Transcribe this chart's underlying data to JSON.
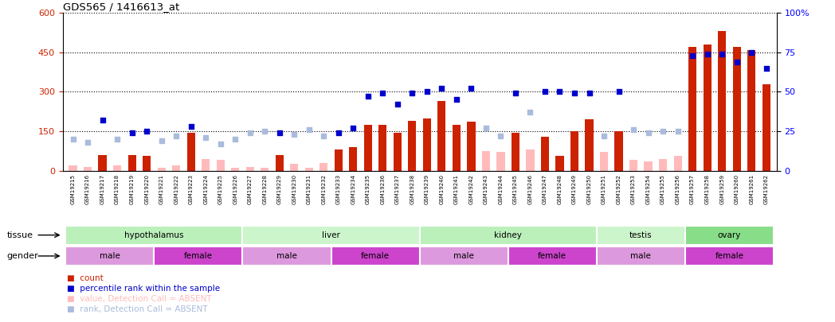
{
  "title": "GDS565 / 1416613_at",
  "samples": [
    "GSM19215",
    "GSM19216",
    "GSM19217",
    "GSM19218",
    "GSM19219",
    "GSM19220",
    "GSM19221",
    "GSM19222",
    "GSM19223",
    "GSM19224",
    "GSM19225",
    "GSM19226",
    "GSM19227",
    "GSM19228",
    "GSM19229",
    "GSM19230",
    "GSM19231",
    "GSM19232",
    "GSM19233",
    "GSM19234",
    "GSM19235",
    "GSM19236",
    "GSM19237",
    "GSM19238",
    "GSM19239",
    "GSM19240",
    "GSM19241",
    "GSM19242",
    "GSM19243",
    "GSM19244",
    "GSM19245",
    "GSM19246",
    "GSM19247",
    "GSM19248",
    "GSM19249",
    "GSM19250",
    "GSM19251",
    "GSM19252",
    "GSM19253",
    "GSM19254",
    "GSM19255",
    "GSM19256",
    "GSM19257",
    "GSM19258",
    "GSM19259",
    "GSM19260",
    "GSM19261",
    "GSM19262"
  ],
  "count_values": [
    20,
    15,
    60,
    20,
    60,
    55,
    10,
    20,
    145,
    45,
    40,
    10,
    15,
    10,
    60,
    25,
    10,
    30,
    80,
    90,
    175,
    175,
    145,
    190,
    200,
    265,
    175,
    185,
    75,
    70,
    145,
    80,
    130,
    55,
    150,
    195,
    70,
    150,
    40,
    35,
    45,
    55,
    470,
    480,
    530,
    470,
    460,
    330
  ],
  "rank_values_pct": [
    20,
    18,
    32,
    20,
    24,
    25,
    19,
    22,
    28,
    21,
    17,
    20,
    24,
    25,
    24,
    23,
    26,
    22,
    24,
    27,
    47,
    49,
    42,
    49,
    50,
    52,
    45,
    52,
    27,
    22,
    49,
    37,
    50,
    50,
    49,
    49,
    22,
    50,
    26,
    24,
    25,
    25,
    73,
    74,
    74,
    69,
    75,
    65
  ],
  "absent_flags": [
    true,
    true,
    false,
    true,
    false,
    false,
    true,
    true,
    false,
    true,
    true,
    true,
    true,
    true,
    false,
    true,
    true,
    true,
    false,
    false,
    false,
    false,
    false,
    false,
    false,
    false,
    false,
    false,
    true,
    true,
    false,
    true,
    false,
    false,
    false,
    false,
    true,
    false,
    true,
    true,
    true,
    true,
    false,
    false,
    false,
    false,
    false,
    false
  ],
  "tissues": [
    {
      "name": "hypothalamus",
      "start": 0,
      "end": 12,
      "color": "#bbf0bb"
    },
    {
      "name": "liver",
      "start": 12,
      "end": 24,
      "color": "#ccf5cc"
    },
    {
      "name": "kidney",
      "start": 24,
      "end": 36,
      "color": "#bbf0bb"
    },
    {
      "name": "testis",
      "start": 36,
      "end": 42,
      "color": "#ccf5cc"
    },
    {
      "name": "ovary",
      "start": 42,
      "end": 48,
      "color": "#88dd88"
    }
  ],
  "genders": [
    {
      "name": "male",
      "start": 0,
      "end": 6,
      "color": "#dd99dd"
    },
    {
      "name": "female",
      "start": 6,
      "end": 12,
      "color": "#cc44cc"
    },
    {
      "name": "male",
      "start": 12,
      "end": 18,
      "color": "#dd99dd"
    },
    {
      "name": "female",
      "start": 18,
      "end": 24,
      "color": "#cc44cc"
    },
    {
      "name": "male",
      "start": 24,
      "end": 30,
      "color": "#dd99dd"
    },
    {
      "name": "female",
      "start": 30,
      "end": 36,
      "color": "#cc44cc"
    },
    {
      "name": "male",
      "start": 36,
      "end": 42,
      "color": "#dd99dd"
    },
    {
      "name": "female",
      "start": 42,
      "end": 48,
      "color": "#cc44cc"
    }
  ],
  "ylim_left": [
    0,
    600
  ],
  "ylim_right": [
    0,
    100
  ],
  "yticks_left": [
    0,
    150,
    300,
    450,
    600
  ],
  "yticks_right": [
    0,
    25,
    50,
    75,
    100
  ],
  "bar_color_present": "#cc2200",
  "bar_color_absent": "#ffbbbb",
  "rank_color_present": "#0000cc",
  "rank_color_absent": "#aabbdd",
  "bg_color": "#ffffff",
  "grid_color": "#000000",
  "legend": [
    {
      "color": "#cc2200",
      "label": "count"
    },
    {
      "color": "#0000cc",
      "label": "percentile rank within the sample"
    },
    {
      "color": "#ffbbbb",
      "label": "value, Detection Call = ABSENT"
    },
    {
      "color": "#aabbdd",
      "label": "rank, Detection Call = ABSENT"
    }
  ]
}
